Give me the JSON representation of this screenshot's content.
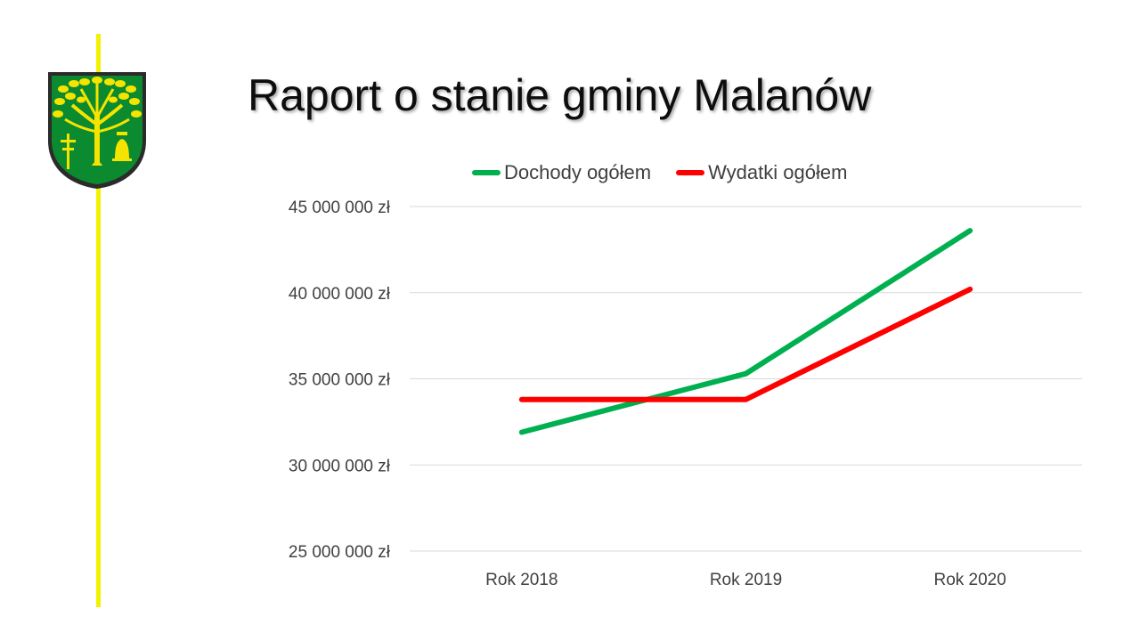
{
  "title": "Raport o stanie gminy Malanów",
  "crest": {
    "icon": "municipal-coat-of-arms-icon",
    "colors": {
      "shield": "#0b8a2f",
      "emblem": "#f5e400",
      "border": "#2b2b2b"
    }
  },
  "accent_colors": {
    "yellow_bar": "#f2f200"
  },
  "chart_data": {
    "type": "line",
    "categories": [
      "Rok 2018",
      "Rok 2019",
      "Rok 2020"
    ],
    "series": [
      {
        "name": "Dochody ogółem",
        "color": "#00b050",
        "values": [
          31900000,
          35300000,
          43600000
        ]
      },
      {
        "name": "Wydatki ogółem",
        "color": "#ff0000",
        "values": [
          33800000,
          33800000,
          40200000
        ]
      }
    ],
    "y_ticks": [
      "25 000 000 zł",
      "30 000 000 zł",
      "35 000 000 zł",
      "40 000 000 zł",
      "45 000 000 zł"
    ],
    "ylim": [
      25000000,
      45000000
    ],
    "grid": true,
    "legend_position": "top"
  }
}
